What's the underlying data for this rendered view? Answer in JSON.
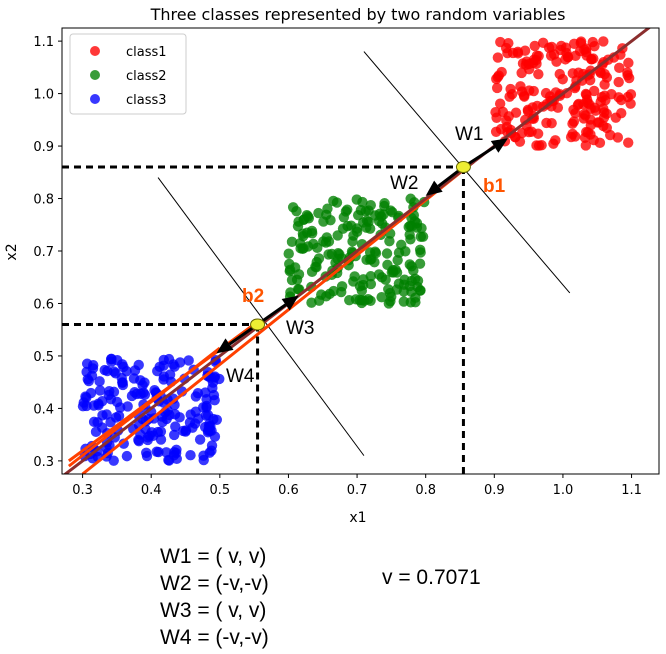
{
  "chart_data": {
    "type": "scatter",
    "title": "Three classes represented by two random variables",
    "xlabel": "x1",
    "ylabel": "x2",
    "xlim": [
      0.27,
      1.14
    ],
    "ylim": [
      0.275,
      1.125
    ],
    "xticks": [
      0.3,
      0.4,
      0.5,
      0.6,
      0.7,
      0.8,
      0.9,
      1.0,
      1.1
    ],
    "xtick_labels": [
      "0.3",
      "0.4",
      "0.5",
      "0.6",
      "0.7",
      "0.8",
      "0.9",
      "1.0",
      "1.1"
    ],
    "yticks": [
      0.3,
      0.4,
      0.5,
      0.6,
      0.7,
      0.8,
      0.9,
      1.0,
      1.1
    ],
    "ytick_labels": [
      "0.3",
      "0.4",
      "0.5",
      "0.6",
      "0.7",
      "0.8",
      "0.9",
      "1.0",
      "1.1"
    ],
    "grid": false,
    "legend_position": "top-left",
    "series": [
      {
        "name": "class1",
        "color": "#ff0000",
        "x_range": [
          0.9,
          1.1
        ],
        "y_range": [
          0.9,
          1.1
        ],
        "count": 200
      },
      {
        "name": "class2",
        "color": "#008000",
        "x_range": [
          0.6,
          0.8
        ],
        "y_range": [
          0.6,
          0.8
        ],
        "count": 200
      },
      {
        "name": "class3",
        "color": "#0000ff",
        "x_range": [
          0.3,
          0.5
        ],
        "y_range": [
          0.3,
          0.5
        ],
        "count": 200
      }
    ],
    "diagonal_line": {
      "color": "#8b2e2e",
      "from": [
        0.27,
        0.27
      ],
      "to": [
        1.14,
        1.14
      ]
    },
    "boundary_lines": [
      {
        "color": "#ff4000",
        "from": [
          0.28,
          0.29
        ],
        "to": [
          0.5,
          0.515
        ]
      },
      {
        "color": "#ff4000",
        "from": [
          0.3,
          0.275
        ],
        "to": [
          0.87,
          0.87
        ]
      },
      {
        "color": "#ff4000",
        "from": [
          0.28,
          0.3
        ],
        "to": [
          0.555,
          0.565
        ]
      }
    ],
    "perpendicular_lines": [
      {
        "from": [
          0.41,
          0.84
        ],
        "to": [
          0.71,
          0.31
        ]
      },
      {
        "from": [
          0.71,
          1.08
        ],
        "to": [
          1.01,
          0.62
        ]
      }
    ],
    "points": [
      {
        "name": "b1",
        "label": "b1",
        "x": 0.855,
        "y": 0.86,
        "color": "#ff5500"
      },
      {
        "name": "b2",
        "label": "b2",
        "x": 0.555,
        "y": 0.56,
        "color": "#ff5500"
      }
    ],
    "arrows": [
      {
        "label": "W1",
        "from": [
          0.855,
          0.86
        ],
        "to": [
          0.92,
          0.915
        ]
      },
      {
        "label": "W2",
        "from": [
          0.855,
          0.86
        ],
        "to": [
          0.8,
          0.805
        ]
      },
      {
        "label": "W3",
        "from": [
          0.555,
          0.56
        ],
        "to": [
          0.615,
          0.615
        ]
      },
      {
        "label": "W4",
        "from": [
          0.555,
          0.56
        ],
        "to": [
          0.495,
          0.505
        ]
      }
    ]
  },
  "equations": [
    "W1 = ( v, v)",
    "W2 = (-v,-v)",
    "W3 = ( v, v)",
    "W4 = (-v,-v)"
  ],
  "v_value": "v = 0.7071"
}
